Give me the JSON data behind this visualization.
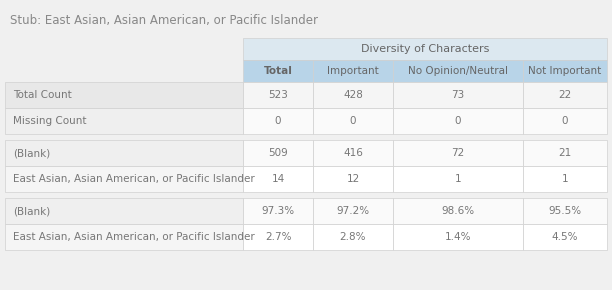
{
  "title": "Stub: East Asian, Asian American, or Pacific Islander",
  "group_header": "Diversity of Characters",
  "col_headers": [
    "Total",
    "Important",
    "No Opinion/Neutral",
    "Not Important"
  ],
  "row_groups": [
    {
      "rows": [
        {
          "label": "Total Count",
          "values": [
            "523",
            "428",
            "73",
            "22"
          ],
          "label_bg": "#e8e8e8",
          "val_bg": "#f5f5f5"
        },
        {
          "label": "Missing Count",
          "values": [
            "0",
            "0",
            "0",
            "0"
          ],
          "label_bg": "#efefef",
          "val_bg": "#fafafa"
        }
      ]
    },
    {
      "rows": [
        {
          "label": "(Blank)",
          "values": [
            "509",
            "416",
            "72",
            "21"
          ],
          "label_bg": "#efefef",
          "val_bg": "#fafafa"
        },
        {
          "label": "East Asian, Asian American, or Pacific Islander",
          "values": [
            "14",
            "12",
            "1",
            "1"
          ],
          "label_bg": "#f5f5f5",
          "val_bg": "#ffffff"
        }
      ]
    },
    {
      "rows": [
        {
          "label": "(Blank)",
          "values": [
            "97.3%",
            "97.2%",
            "98.6%",
            "95.5%"
          ],
          "label_bg": "#efefef",
          "val_bg": "#fafafa"
        },
        {
          "label": "East Asian, Asian American, or Pacific Islander",
          "values": [
            "2.7%",
            "2.8%",
            "1.4%",
            "4.5%"
          ],
          "label_bg": "#f5f5f5",
          "val_bg": "#ffffff"
        }
      ]
    }
  ],
  "header_bg": "#b8d4e8",
  "group_header_bg": "#dce8f0",
  "fig_bg": "#f0f0f0",
  "title_color": "#888888",
  "header_text_color": "#666666",
  "cell_text_color": "#777777",
  "border_color": "#d0d0d0",
  "figsize": [
    6.12,
    2.9
  ],
  "dpi": 100
}
